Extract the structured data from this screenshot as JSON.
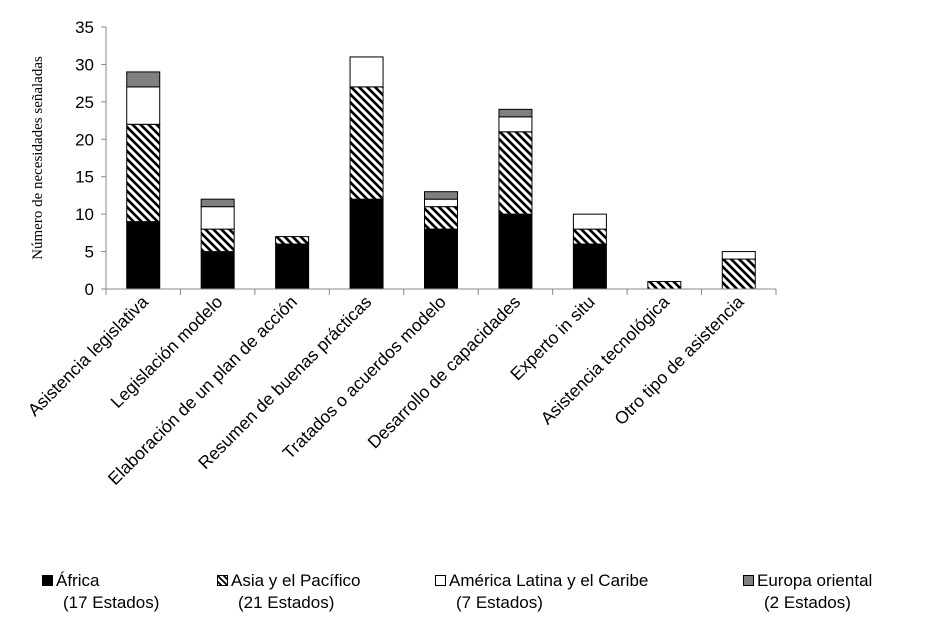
{
  "chart_data": {
    "type": "bar",
    "stacked": true,
    "title": "",
    "xlabel": "",
    "ylabel": "Número de necesidades señaladas",
    "ylim": [
      0,
      35
    ],
    "yticks": [
      "0",
      "5",
      "10",
      "15",
      "20",
      "25",
      "30",
      "35"
    ],
    "grid": false,
    "legend_position": "bottom",
    "categories": [
      "Asistencia legislativa",
      "Legislación modelo",
      "Elaboración de un plan de acción",
      "Resumen de buenas prácticas",
      "Tratados o acuerdos modelo",
      "Desarrollo de capacidades",
      "Experto in situ",
      "Asistencia tecnológica",
      "Otro tipo de asistencia"
    ],
    "series": [
      {
        "name": "África",
        "note": "(17 Estados)",
        "fill": "solid",
        "color": "#000000",
        "values": [
          9,
          5,
          6,
          12,
          8,
          10,
          6,
          0,
          0
        ]
      },
      {
        "name": "Asia y el Pacífico",
        "note": "(21 Estados)",
        "fill": "hatch",
        "color": "#000000",
        "values": [
          13,
          3,
          1,
          15,
          3,
          11,
          2,
          1,
          4
        ]
      },
      {
        "name": "América Latina y el Caribe",
        "note": "(7 Estados)",
        "fill": "solid",
        "color": "#ffffff",
        "values": [
          5,
          3,
          0,
          4,
          1,
          2,
          2,
          0,
          1
        ]
      },
      {
        "name": "Europa oriental",
        "note": "(2 Estados)",
        "fill": "solid",
        "color": "#808080",
        "values": [
          2,
          1,
          0,
          0,
          1,
          1,
          0,
          0,
          0
        ]
      }
    ]
  }
}
